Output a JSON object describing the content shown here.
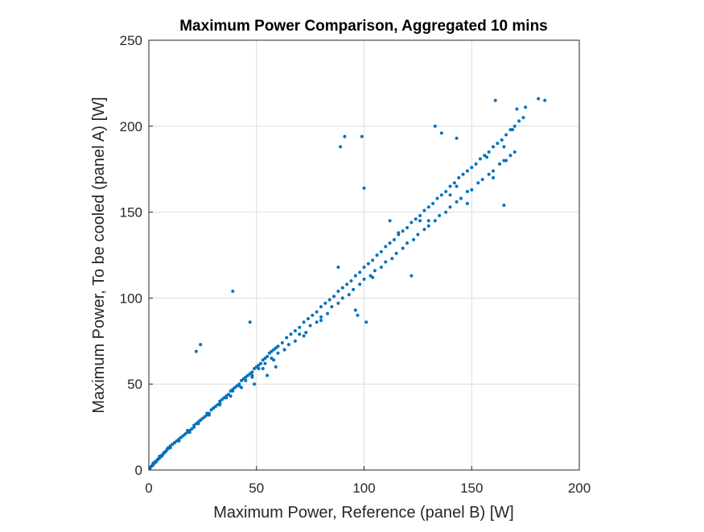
{
  "chart_data": {
    "type": "scatter",
    "title": "Maximum Power Comparison, Aggregated 10 mins",
    "xlabel": "Maximum Power, Reference (panel B) [W]",
    "ylabel": "Maximum Power, To be cooled (panel A) [W]",
    "xlim": [
      0,
      200
    ],
    "ylim": [
      0,
      250
    ],
    "xticks": [
      "0",
      "50",
      "100",
      "150",
      "200"
    ],
    "yticks": [
      "0",
      "50",
      "100",
      "150",
      "200",
      "250"
    ],
    "grid": true,
    "marker_color": "#0072BD",
    "series": [
      {
        "x": [
          0.5,
          1,
          1.5,
          2,
          2.5,
          3,
          3.5,
          4,
          4.5,
          5,
          5.5,
          6,
          6.5,
          7,
          7.5,
          8,
          8.5,
          9,
          9.5,
          10,
          11,
          12,
          13,
          14,
          15,
          16,
          17,
          18,
          19,
          20,
          21,
          22,
          23,
          24,
          25,
          26,
          27,
          28,
          29,
          30,
          31,
          32,
          33,
          34,
          35,
          36,
          37,
          38,
          39,
          40,
          41,
          42,
          43,
          44,
          45,
          46,
          47,
          48,
          49,
          50,
          51,
          52,
          53,
          54,
          55,
          56,
          57,
          58,
          59,
          60,
          62,
          64,
          66,
          68,
          70,
          72,
          74,
          76,
          78,
          80,
          82,
          84,
          86,
          88,
          90,
          92,
          94,
          96,
          98,
          100,
          102,
          104,
          106,
          108,
          110,
          112,
          114,
          116,
          118,
          120,
          122,
          124,
          126,
          128,
          130,
          132,
          134,
          136,
          138,
          140,
          142,
          144,
          146,
          148,
          150,
          152,
          154,
          156,
          158,
          160,
          162,
          164,
          166,
          168,
          170,
          172,
          174,
          2,
          3,
          5,
          7,
          9,
          12,
          15,
          18,
          21,
          24,
          27,
          30,
          33,
          36,
          39,
          42,
          45,
          48,
          51,
          54,
          57,
          60,
          65,
          70,
          75,
          80,
          85,
          90,
          95,
          100,
          105,
          110,
          115,
          120,
          125,
          130,
          135,
          140,
          145,
          150,
          155,
          160,
          165,
          170,
          6,
          10,
          14,
          19,
          23,
          28,
          33,
          38,
          43,
          48,
          53,
          58,
          63,
          68,
          73,
          78,
          83,
          88,
          93,
          98,
          103,
          108,
          113,
          118,
          123,
          128,
          133,
          138,
          143,
          148,
          153,
          158,
          163,
          168,
          89,
          91,
          97,
          99,
          100,
          101,
          22,
          24,
          39,
          47,
          88,
          133,
          136,
          143,
          161,
          181,
          184,
          165,
          148,
          130,
          122,
          126,
          140,
          143,
          160,
          166,
          175,
          171,
          169,
          165,
          157,
          112,
          116,
          104,
          96,
          80,
          72,
          63,
          59,
          55,
          49
        ],
        "y": [
          1,
          2,
          2.5,
          3,
          4,
          4.5,
          5,
          6,
          6.5,
          7,
          8,
          8.5,
          9,
          10,
          10.5,
          11,
          12,
          12.5,
          13,
          14,
          15,
          16,
          17,
          18,
          19,
          20,
          21,
          22,
          23,
          24,
          25,
          27,
          28,
          29,
          30,
          31,
          32,
          33,
          35,
          36,
          37,
          38,
          40,
          41,
          42,
          43,
          44,
          46,
          47,
          48,
          49,
          50,
          52,
          53,
          54,
          55,
          56,
          57,
          59,
          60,
          61,
          62,
          64,
          65,
          66,
          68,
          69,
          70,
          71,
          72,
          74,
          77,
          79,
          81,
          83,
          86,
          88,
          90,
          92,
          95,
          97,
          99,
          101,
          104,
          106,
          108,
          110,
          113,
          115,
          118,
          120,
          122,
          125,
          127,
          130,
          132,
          134,
          137,
          139,
          141,
          144,
          146,
          148,
          151,
          153,
          155,
          158,
          160,
          162,
          165,
          167,
          170,
          172,
          174,
          176,
          178,
          181,
          183,
          185,
          188,
          190,
          192,
          195,
          198,
          200,
          203,
          205,
          4,
          5,
          8,
          10,
          13,
          16,
          19,
          23,
          26,
          29,
          33,
          36,
          39,
          42,
          46,
          49,
          52,
          55,
          59,
          62,
          65,
          68,
          73,
          79,
          84,
          89,
          95,
          100,
          105,
          111,
          116,
          121,
          126,
          132,
          137,
          142,
          148,
          153,
          158,
          163,
          169,
          174,
          180,
          185,
          8,
          13,
          17,
          22,
          27,
          32,
          38,
          43,
          48,
          54,
          59,
          64,
          70,
          75,
          80,
          86,
          91,
          97,
          102,
          108,
          113,
          118,
          123,
          129,
          134,
          140,
          145,
          150,
          156,
          162,
          167,
          172,
          178,
          183,
          188,
          194,
          90,
          194,
          164,
          86,
          69,
          73,
          104,
          86,
          118,
          200,
          196,
          193,
          215,
          216,
          215,
          154,
          155,
          145,
          113,
          145,
          160,
          165,
          170,
          180,
          211,
          210,
          198,
          188,
          182,
          145,
          138,
          112,
          93,
          87,
          78,
          70,
          60,
          55,
          50
        ]
      }
    ]
  }
}
